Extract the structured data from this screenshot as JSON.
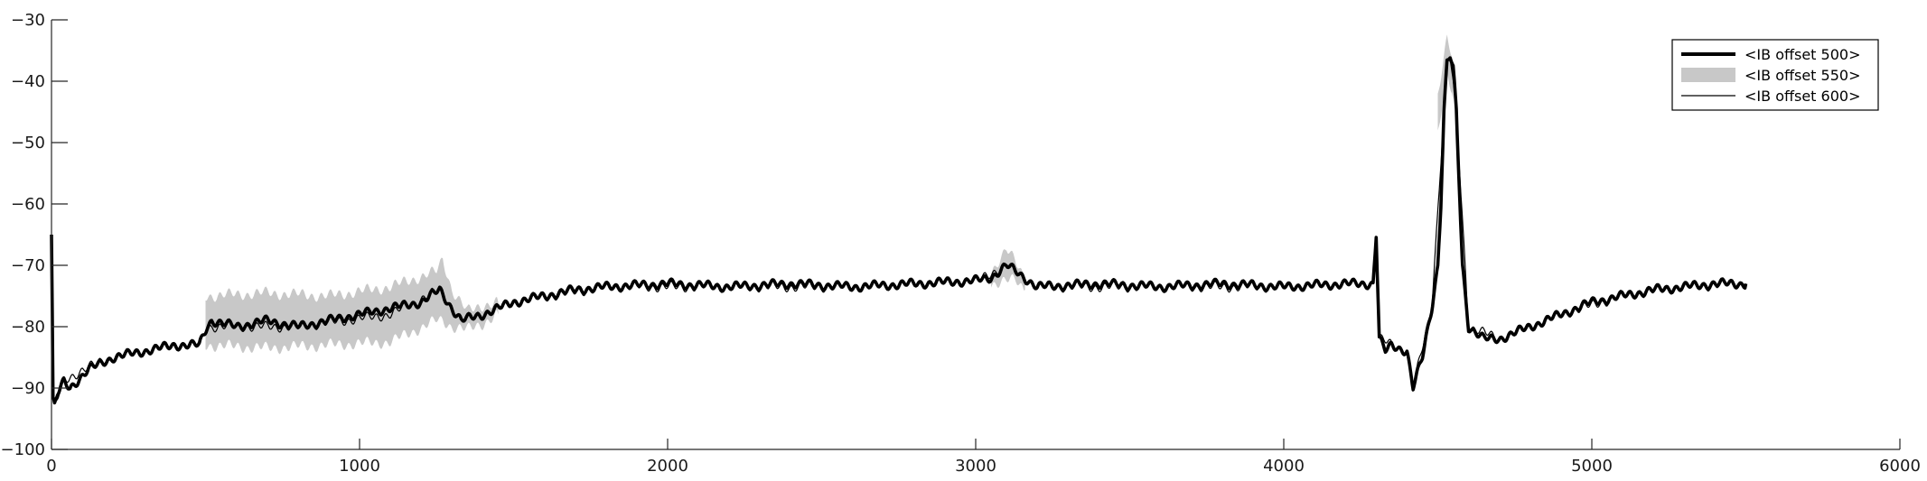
{
  "chart_data": {
    "type": "line",
    "title": "",
    "xlabel": "",
    "ylabel": "",
    "xlim": [
      0,
      6000
    ],
    "ylim": [
      -100,
      -30
    ],
    "xticks": [
      0,
      1000,
      2000,
      3000,
      4000,
      5000,
      6000
    ],
    "yticks": [
      -30,
      -40,
      -50,
      -60,
      -70,
      -80,
      -90,
      -100
    ],
    "xtick_labels": [
      "0",
      "1000",
      "2000",
      "3000",
      "4000",
      "5000",
      "6000"
    ],
    "ytick_labels": [
      "−30",
      "−40",
      "−50",
      "−60",
      "−70",
      "−80",
      "−90",
      "−100"
    ],
    "grid": false,
    "legend_position": "top-right",
    "colors": {
      "offset500": "#000000",
      "offset550": "#c8c8c8",
      "offset600": "#000000"
    },
    "series": [
      {
        "name": "<IB offset 500>",
        "style": "thick-line",
        "x": [
          0,
          5,
          10,
          20,
          40,
          60,
          80,
          120,
          160,
          200,
          300,
          400,
          480,
          505,
          520,
          600,
          700,
          800,
          900,
          1000,
          1100,
          1200,
          1260,
          1300,
          1330,
          1400,
          1500,
          1600,
          1700,
          1800,
          2000,
          2200,
          2400,
          2600,
          2800,
          3000,
          3050,
          3100,
          3130,
          3200,
          3400,
          3600,
          3800,
          4000,
          4200,
          4290,
          4300,
          4310,
          4330,
          4350,
          4400,
          4420,
          4450,
          4480,
          4500,
          4510,
          4520,
          4530,
          4540,
          4550,
          4560,
          4580,
          4600,
          4650,
          4700,
          4800,
          4900,
          5000,
          5100,
          5200,
          5300,
          5400,
          5500
        ],
        "values": [
          -65,
          -92,
          -93,
          -91,
          -89,
          -90,
          -89,
          -87,
          -86,
          -85,
          -84,
          -83,
          -83,
          -80,
          -79,
          -80,
          -79,
          -80,
          -79,
          -78,
          -77,
          -76,
          -74,
          -77,
          -79,
          -78,
          -76,
          -75,
          -74,
          -73.5,
          -73,
          -73.5,
          -73,
          -73.5,
          -73,
          -72.5,
          -72,
          -70,
          -71,
          -73.5,
          -73,
          -73.5,
          -73,
          -73.5,
          -73,
          -73,
          -65,
          -82,
          -84,
          -83,
          -84,
          -90,
          -85,
          -77,
          -70,
          -60,
          -45,
          -37,
          -36,
          -38,
          -45,
          -70,
          -80,
          -82,
          -82,
          -80,
          -78,
          -76,
          -75,
          -74,
          -73.5,
          -73,
          -73
        ]
      },
      {
        "name": "<IB offset 550>",
        "style": "band",
        "x": [
          500,
          700,
          900,
          1100,
          1250,
          1270,
          1300,
          1350,
          1400,
          1450,
          3050,
          3100,
          3130,
          3160,
          4500,
          4530,
          4550
        ],
        "values": [
          -79,
          -79,
          -79,
          -78,
          -75,
          -74,
          -77,
          -79,
          -78,
          -77,
          -72,
          -70,
          -71,
          -73,
          -45,
          -36,
          -40
        ],
        "spread": [
          4,
          4.5,
          4,
          4.5,
          4,
          5,
          3,
          1.5,
          1.5,
          1,
          1,
          2.5,
          1.5,
          1,
          3,
          3,
          3
        ]
      },
      {
        "name": "<IB offset 600>",
        "style": "thin-line",
        "x": [
          0,
          5,
          10,
          40,
          100,
          200,
          300,
          400,
          480,
          505,
          800,
          1100,
          1260,
          1330,
          1500,
          1800,
          2200,
          2600,
          3000,
          3100,
          3200,
          3600,
          4000,
          4290,
          4300,
          4310,
          4400,
          4420,
          4480,
          4520,
          4530,
          4540,
          4560,
          4600,
          4700,
          4900,
          5100,
          5300,
          5500
        ],
        "values": [
          -65,
          -92,
          -93,
          -89,
          -87,
          -85,
          -84,
          -83,
          -83,
          -80,
          -80,
          -78,
          -74,
          -79,
          -76,
          -73.5,
          -73.5,
          -73.5,
          -72.5,
          -70,
          -73.5,
          -73.5,
          -73.5,
          -73,
          -65,
          -82,
          -84,
          -90,
          -77,
          -45,
          -37,
          -36,
          -45,
          -80,
          -82,
          -78,
          -75,
          -73.5,
          -73
        ]
      }
    ]
  }
}
